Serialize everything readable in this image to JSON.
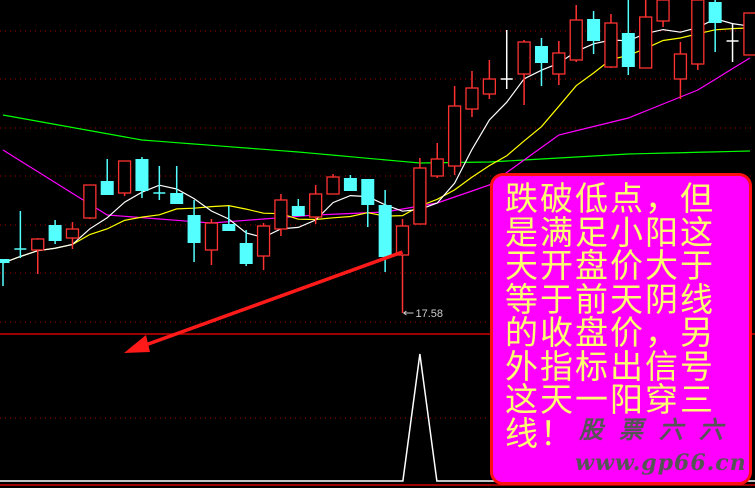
{
  "chart_data": {
    "type": "candlestick",
    "colors": {
      "up": "#ff3232",
      "down": "#54ffff",
      "doji": "#ffffff",
      "ma5": "#ffffff",
      "ma10": "#ffff00",
      "ma_long1": "#ff00ff",
      "ma_long2": "#00ff00",
      "grid": "#a00000",
      "indicator": "#ffffff",
      "arrow": "#ff1a1a"
    },
    "candles": [
      [
        18.66,
        18.66,
        18.12,
        18.58
      ],
      [
        18.86,
        19.62,
        18.68,
        18.84
      ],
      [
        18.84,
        19.08,
        18.36,
        19.06
      ],
      [
        19.34,
        19.44,
        18.96,
        19.02
      ],
      [
        19.08,
        19.4,
        18.86,
        19.26
      ],
      [
        19.48,
        20.14,
        19.46,
        20.14
      ],
      [
        20.22,
        20.66,
        19.94,
        19.94
      ],
      [
        19.98,
        20.62,
        19.92,
        20.62
      ],
      [
        20.66,
        20.7,
        19.88,
        20.02
      ],
      [
        19.98,
        20.52,
        19.84,
        19.96
      ],
      [
        19.98,
        20.52,
        19.76,
        19.76
      ],
      [
        19.54,
        19.84,
        18.6,
        18.98
      ],
      [
        18.84,
        19.46,
        18.54,
        19.38
      ],
      [
        19.36,
        19.72,
        19.22,
        19.22
      ],
      [
        18.98,
        19.24,
        18.52,
        18.56
      ],
      [
        18.72,
        19.38,
        18.44,
        19.32
      ],
      [
        19.26,
        19.96,
        19.12,
        19.84
      ],
      [
        19.72,
        19.86,
        19.52,
        19.52
      ],
      [
        19.5,
        20.14,
        19.36,
        19.96
      ],
      [
        19.96,
        20.36,
        19.96,
        20.3
      ],
      [
        20.28,
        20.34,
        20.02,
        20.02
      ],
      [
        20.26,
        20.26,
        19.3,
        19.74
      ],
      [
        19.74,
        20.04,
        18.4,
        18.7
      ],
      [
        18.74,
        19.46,
        17.58,
        19.32
      ],
      [
        19.36,
        20.68,
        19.36,
        20.48
      ],
      [
        20.32,
        20.98,
        20.28,
        20.66
      ],
      [
        20.52,
        22.12,
        20.34,
        21.72
      ],
      [
        21.66,
        22.42,
        21.5,
        22.08
      ],
      [
        21.96,
        22.64,
        21.86,
        22.26
      ],
      [
        22.26,
        23.24,
        22.06,
        22.26
      ],
      [
        22.36,
        23.04,
        21.74,
        23.0
      ],
      [
        22.92,
        23.08,
        22.12,
        22.58
      ],
      [
        22.36,
        23.02,
        22.14,
        22.78
      ],
      [
        22.64,
        23.74,
        22.6,
        23.44
      ],
      [
        23.46,
        23.62,
        22.76,
        23.02
      ],
      [
        22.5,
        23.56,
        22.48,
        23.38
      ],
      [
        23.18,
        23.84,
        22.34,
        22.5
      ],
      [
        22.48,
        23.84,
        22.48,
        23.5
      ],
      [
        23.42,
        23.84,
        23.3,
        23.84
      ],
      [
        22.26,
        23.0,
        21.86,
        22.76
      ],
      [
        22.56,
        23.84,
        22.44,
        23.84
      ],
      [
        23.8,
        23.84,
        22.8,
        23.38
      ],
      [
        23.02,
        23.36,
        22.6,
        23.02
      ],
      [
        22.74,
        23.58,
        22.74,
        23.58
      ]
    ],
    "ma_long1_points": [
      [
        0,
        20.84
      ],
      [
        6,
        19.54
      ],
      [
        12,
        19.38
      ],
      [
        18,
        19.54
      ],
      [
        22,
        19.6
      ],
      [
        25,
        19.78
      ],
      [
        28,
        20.14
      ],
      [
        32,
        21.14
      ],
      [
        36,
        21.48
      ],
      [
        40,
        22.04
      ],
      [
        43,
        22.68
      ]
    ],
    "ma_long2_points": [
      [
        0,
        21.54
      ],
      [
        8,
        21.04
      ],
      [
        17,
        20.8
      ],
      [
        24,
        20.58
      ],
      [
        28,
        20.6
      ],
      [
        36,
        20.76
      ],
      [
        43,
        20.82
      ]
    ],
    "low_label": "17.58",
    "low_index": 23,
    "indicator": {
      "signal_index": 24,
      "values_note_free": true
    }
  },
  "annotation": {
    "text": "跌破低点，但是满足小阳这天开盘价大于等于前天阴线的收盘价，另外指标出信号这天一阳穿三线！"
  },
  "watermark": {
    "name": "股票六六",
    "url": "www.gp66.cn"
  }
}
